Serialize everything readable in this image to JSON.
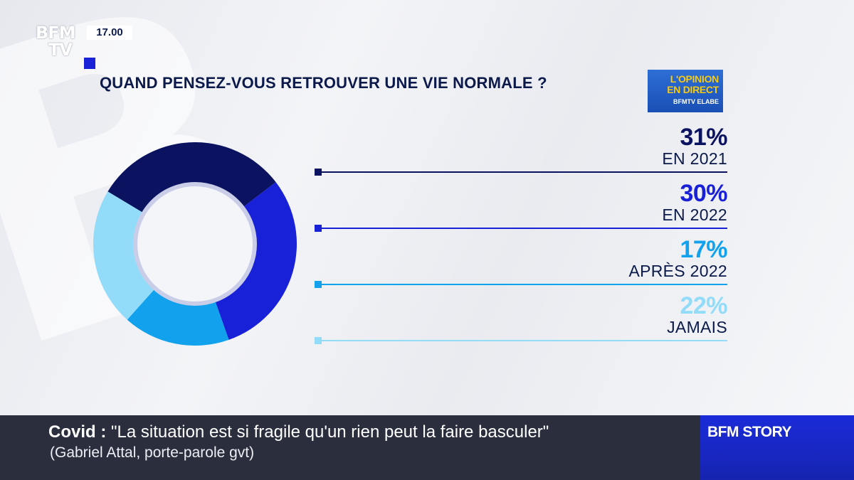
{
  "header": {
    "logo_top": "BFM",
    "logo_bottom": "TV",
    "time": "17.00"
  },
  "title": "QUAND PENSEZ-VOUS RETROUVER UNE VIE NORMALE ?",
  "badge": {
    "line1": "L'OPINION",
    "line2": "EN DIRECT",
    "line3": "BFMTV ELABE"
  },
  "chart_data": {
    "type": "pie",
    "title": "QUAND PENSEZ-VOUS RETROUVER UNE VIE NORMALE ?",
    "slices": [
      {
        "label": "EN 2021",
        "value": 31,
        "display": "31%",
        "color": "#0b1360"
      },
      {
        "label": "EN 2022",
        "value": 30,
        "display": "30%",
        "color": "#1820d8"
      },
      {
        "label": "APRÈS 2022",
        "value": 17,
        "display": "17%",
        "color": "#12a1ec"
      },
      {
        "label": "JAMAIS",
        "value": 22,
        "display": "22%",
        "color": "#93dcf9"
      }
    ]
  },
  "ticker": {
    "topic": "Covid",
    "separator": " : ",
    "headline": "\"La situation est si fragile qu'un rien peut la faire basculer\"",
    "source": "(Gabriel Attal, porte-parole gvt)",
    "channel": "BFM STORY"
  }
}
